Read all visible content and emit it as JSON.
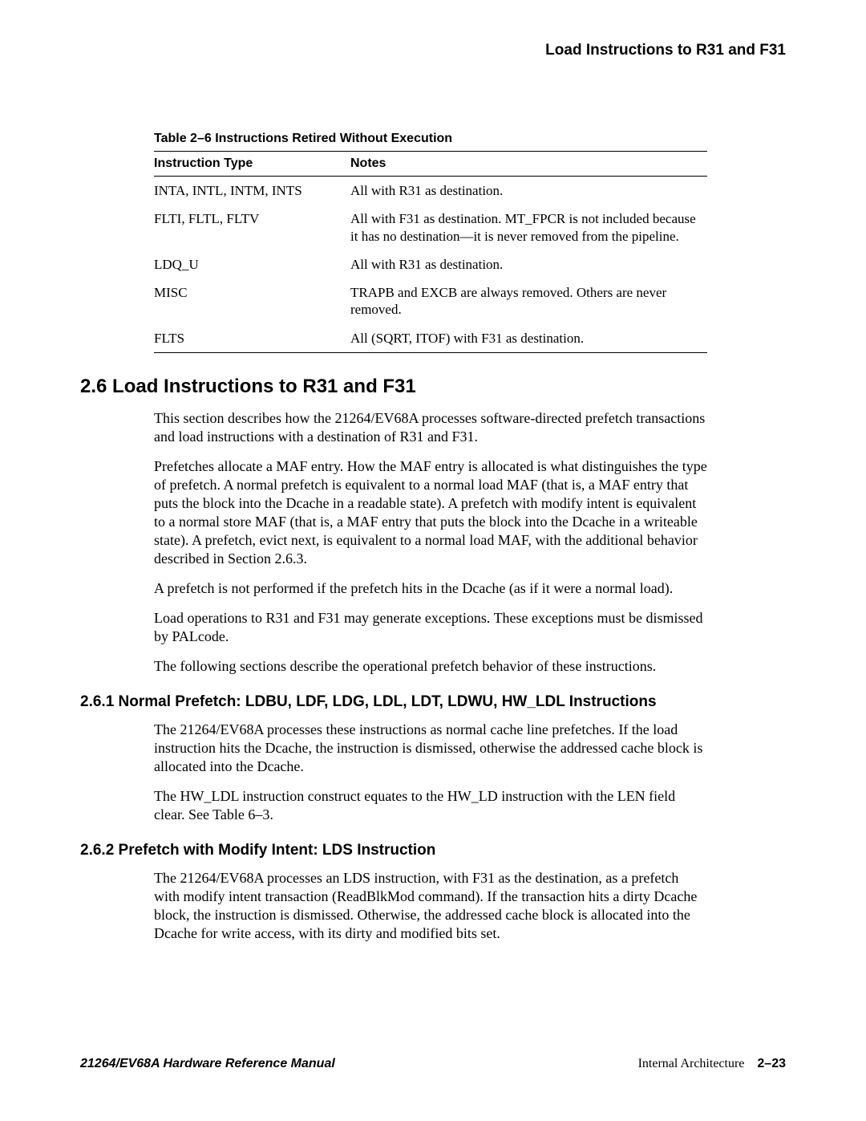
{
  "running_head": "Load Instructions to R31 and F31",
  "table": {
    "caption": "Table 2–6  Instructions Retired Without Execution",
    "headers": {
      "c1": "Instruction Type",
      "c2": "Notes"
    },
    "rows": [
      {
        "c1": "INTA, INTL, INTM, INTS",
        "c2": "All with R31 as destination."
      },
      {
        "c1": "FLTI, FLTL, FLTV",
        "c2": "All with F31 as destination. MT_FPCR is not included because it has no destination—it is never removed from the pipeline."
      },
      {
        "c1": "LDQ_U",
        "c2": "All with R31 as destination."
      },
      {
        "c1": "MISC",
        "c2": "TRAPB and EXCB are always removed.  Others are never removed."
      },
      {
        "c1": "FLTS",
        "c2": "All (SQRT, ITOF) with F31 as destination."
      }
    ]
  },
  "section_heading": "2.6  Load Instructions to R31 and F31",
  "paras": {
    "p1": "This section describes how the 21264/EV68A processes software-directed prefetch transactions and load instructions with a destination of R31 and F31.",
    "p2": "Prefetches allocate a MAF entry. How the MAF entry is allocated is what distinguishes the type of prefetch. A normal prefetch is equivalent to a normal load MAF (that is, a MAF entry that puts the block into the Dcache in a readable state). A prefetch with modify intent is equivalent to a normal store MAF (that is, a MAF entry that puts the block into the Dcache in a writeable state). A prefetch, evict next, is equivalent to a normal load MAF, with the additional behavior described in Section 2.6.3.",
    "p3": "A prefetch is not performed if the prefetch hits in the Dcache (as if it were a normal load).",
    "p4": "Load operations to R31 and F31 may generate exceptions. These exceptions  must be dismissed by PALcode.",
    "p5": "The following sections describe the operational prefetch behavior of these instructions."
  },
  "sub1_heading": "2.6.1  Normal Prefetch: LDBU, LDF, LDG, LDL, LDT, LDWU, HW_LDL Instructions",
  "sub1": {
    "p1": "The 21264/EV68A processes these instructions as normal cache line prefetches. If the load instruction hits the Dcache, the instruction is dismissed, otherwise the addressed cache block is allocated into the Dcache.",
    "p2": "The HW_LDL instruction construct equates to the HW_LD instruction with the LEN field clear. See Table 6–3."
  },
  "sub2_heading": "2.6.2  Prefetch with Modify Intent: LDS Instruction",
  "sub2": {
    "p1": "The 21264/EV68A processes an LDS instruction, with F31 as the destination, as a prefetch with modify intent transaction (ReadBlkMod command). If the transaction hits a dirty Dcache block, the instruction is dismissed. Otherwise, the addressed cache block is allocated into the Dcache for write access, with its dirty and modified bits set."
  },
  "footer": {
    "left": "21264/EV68A Hardware Reference Manual",
    "right_text": "Internal Architecture",
    "right_page": "2–23"
  }
}
